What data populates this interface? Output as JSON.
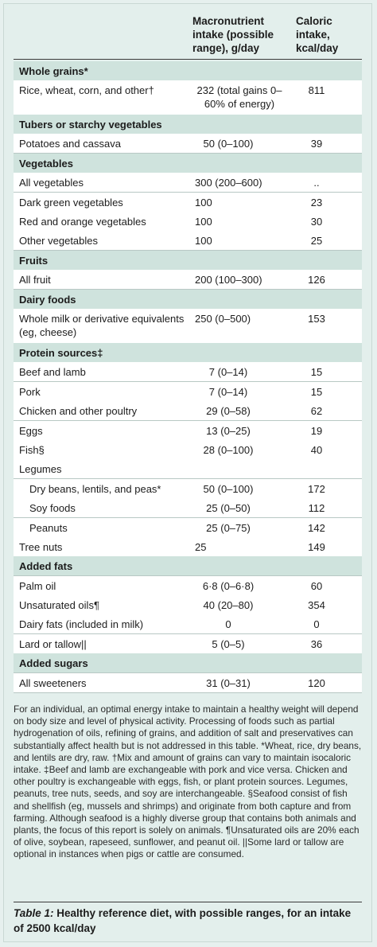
{
  "header": {
    "macro_label": "Macronutrient intake (possible range), g/day",
    "kcal_label": "Caloric intake, kcal/day"
  },
  "sections": [
    {
      "title": "Whole grains*",
      "rows": [
        {
          "name": "Rice, wheat, corn, and other†",
          "macro": "232 (total gains 0–60% of energy)",
          "kcal": "811"
        }
      ]
    },
    {
      "title": "Tubers or starchy vegetables",
      "rows": [
        {
          "name": "Potatoes and cassava",
          "macro": "50 (0–100)",
          "kcal": "39"
        }
      ]
    },
    {
      "title": "Vegetables",
      "rows": [
        {
          "name": "All vegetables",
          "macro": "300 (200–600)",
          "kcal": ".."
        },
        {
          "name": "Dark green vegetables",
          "macro": "100",
          "kcal": "23"
        },
        {
          "name": "Red and orange vegetables",
          "macro": "100",
          "kcal": "30"
        },
        {
          "name": "Other vegetables",
          "macro": "100",
          "kcal": "25"
        }
      ]
    },
    {
      "title": "Fruits",
      "rows": [
        {
          "name": "All fruit",
          "macro": "200 (100–300)",
          "kcal": "126"
        }
      ]
    },
    {
      "title": "Dairy foods",
      "rows": [
        {
          "name": "Whole milk or derivative equivalents (eg, cheese)",
          "macro": "250 (0–500)",
          "kcal": "153"
        }
      ]
    },
    {
      "title": "Protein sources‡",
      "rows": [
        {
          "name": "Beef and lamb",
          "macro": "7 (0–14)",
          "kcal": "15"
        },
        {
          "name": "Pork",
          "macro": "7 (0–14)",
          "kcal": "15"
        },
        {
          "name": "Chicken and other poultry",
          "macro": "29 (0–58)",
          "kcal": "62"
        },
        {
          "name": "Eggs",
          "macro": "13 (0–25)",
          "kcal": "19"
        },
        {
          "name": "Fish§",
          "macro": "28 (0–100)",
          "kcal": "40"
        },
        {
          "name": "Legumes",
          "macro": "",
          "kcal": ""
        },
        {
          "name": "Dry beans, lentils, and peas*",
          "macro": "50 (0–100)",
          "kcal": "172"
        },
        {
          "name": "Soy foods",
          "macro": "25 (0–50)",
          "kcal": "112"
        },
        {
          "name": "Peanuts",
          "macro": "25 (0–75)",
          "kcal": "142"
        },
        {
          "name": "Tree nuts",
          "macro": "25",
          "kcal": "149"
        }
      ]
    },
    {
      "title": "Added fats",
      "rows": [
        {
          "name": "Palm oil",
          "macro": "6·8 (0–6·8)",
          "kcal": "60"
        },
        {
          "name": "Unsaturated oils¶",
          "macro": "40 (20–80)",
          "kcal": "354"
        },
        {
          "name": "Dairy fats (included in milk)",
          "macro": "0",
          "kcal": "0"
        },
        {
          "name": "Lard or tallow||",
          "macro": "5 (0–5)",
          "kcal": "36"
        }
      ]
    },
    {
      "title": "Added sugars",
      "rows": [
        {
          "name": "All sweeteners",
          "macro": "31 (0–31)",
          "kcal": "120"
        }
      ]
    }
  ],
  "notes": "For an individual, an optimal energy intake to maintain a healthy weight will depend on body size and level of physical activity. Processing of foods such as partial hydrogenation of oils, refining of grains, and addition of salt and preservatives can substantially affect health but is not addressed in this table. *Wheat, rice, dry beans, and lentils are dry, raw. †Mix and amount of grains can vary to maintain isocaloric intake. ‡Beef and lamb are exchangeable with pork and vice versa. Chicken and other poultry is exchangeable with eggs, fish, or plant protein sources. Legumes, peanuts, tree nuts, seeds, and soy are interchangeable. §Seafood consist of fish and shellfish (eg, mussels and shrimps) and originate from both capture and from farming. Although seafood is a highly diverse group that contains both animals and plants, the focus of this report is solely on animals. ¶Unsaturated oils are 20% each of olive, soybean, rapeseed, sunflower, and peanut oil. ||Some lard or tallow are optional in instances when pigs or cattle are consumed.",
  "caption": {
    "label": "Table 1:",
    "text": " Healthy reference diet, with possible ranges, for an intake of 2500 kcal/day"
  }
}
